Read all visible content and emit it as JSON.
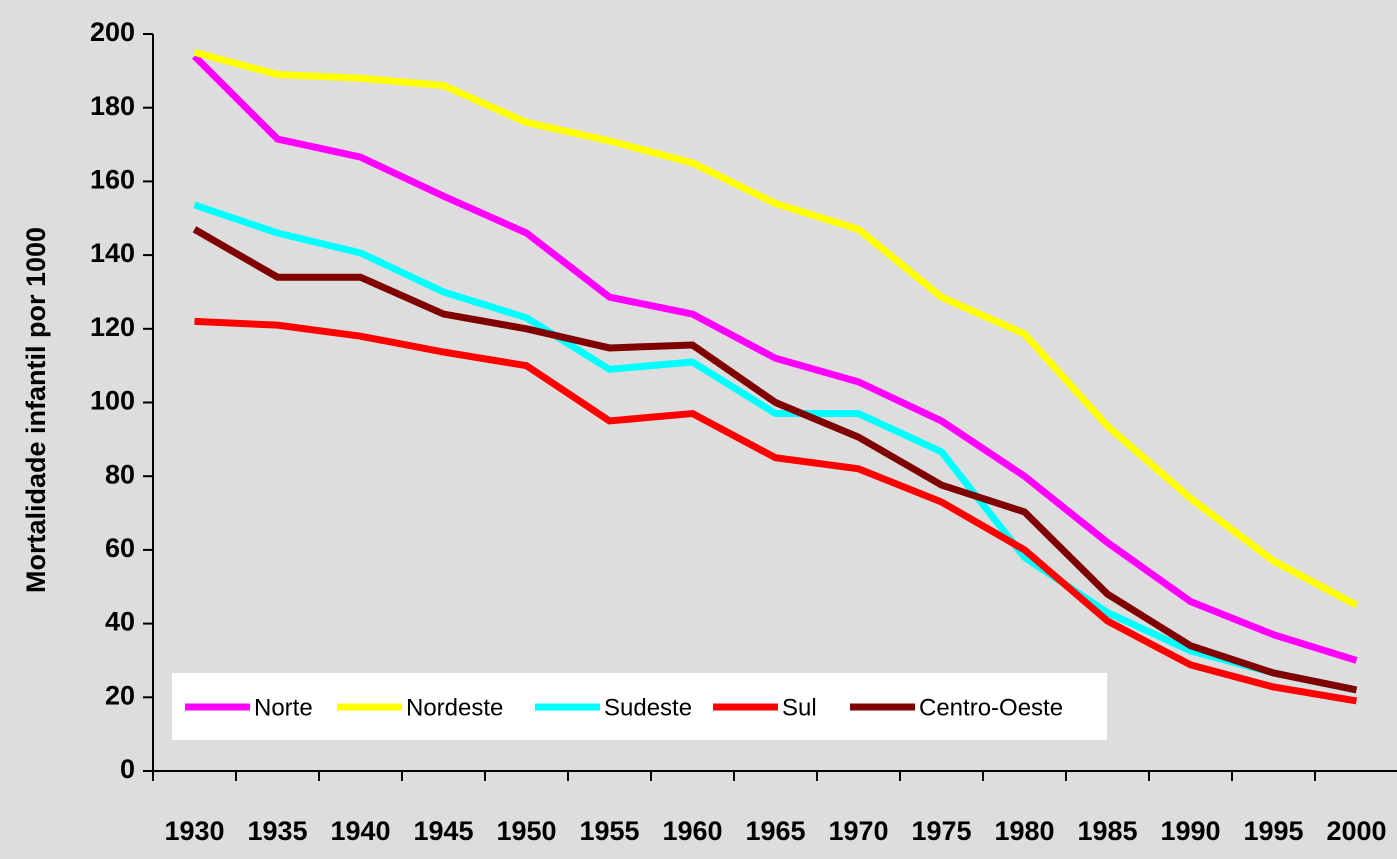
{
  "chart_data": {
    "type": "line",
    "y_label": "Mortalidade infantil por 1000",
    "categories": [
      "1930",
      "1935",
      "1940",
      "1945",
      "1950",
      "1955",
      "1960",
      "1965",
      "1970",
      "1975",
      "1980",
      "1985",
      "1990",
      "1995",
      "2000"
    ],
    "ylim": [
      0,
      200
    ],
    "yticks": [
      0,
      20,
      40,
      60,
      80,
      100,
      120,
      140,
      160,
      180,
      200
    ],
    "legend": "bottom-left",
    "series": [
      {
        "name": "Norte",
        "color": "#ff00ff",
        "values": [
          194,
          171.5,
          166.6,
          156,
          146,
          128.6,
          124,
          112,
          105.6,
          95,
          80,
          62,
          46,
          37,
          30
        ]
      },
      {
        "name": "Nordeste",
        "color": "#ffff00",
        "values": [
          195,
          189,
          188,
          186,
          176,
          171,
          165,
          154,
          147,
          128.6,
          118.6,
          93.6,
          74,
          57,
          45
        ]
      },
      {
        "name": "Sudeste",
        "color": "#00ffff",
        "values": [
          153.6,
          146,
          140.6,
          130,
          123,
          109,
          111,
          97,
          97,
          86.6,
          58,
          43,
          32.6,
          26.6,
          22
        ]
      },
      {
        "name": "Sul",
        "color": "#ff0000",
        "values": [
          122,
          121,
          118,
          113.7,
          110,
          95,
          97,
          85,
          82,
          73,
          60,
          40.7,
          28.8,
          22.8,
          19
        ]
      },
      {
        "name": "Centro-Oeste",
        "color": "#800000",
        "values": [
          147,
          134,
          134,
          124,
          120,
          114.8,
          115.6,
          100,
          90.6,
          77.6,
          70.3,
          48,
          34,
          26.6,
          22
        ]
      }
    ]
  }
}
